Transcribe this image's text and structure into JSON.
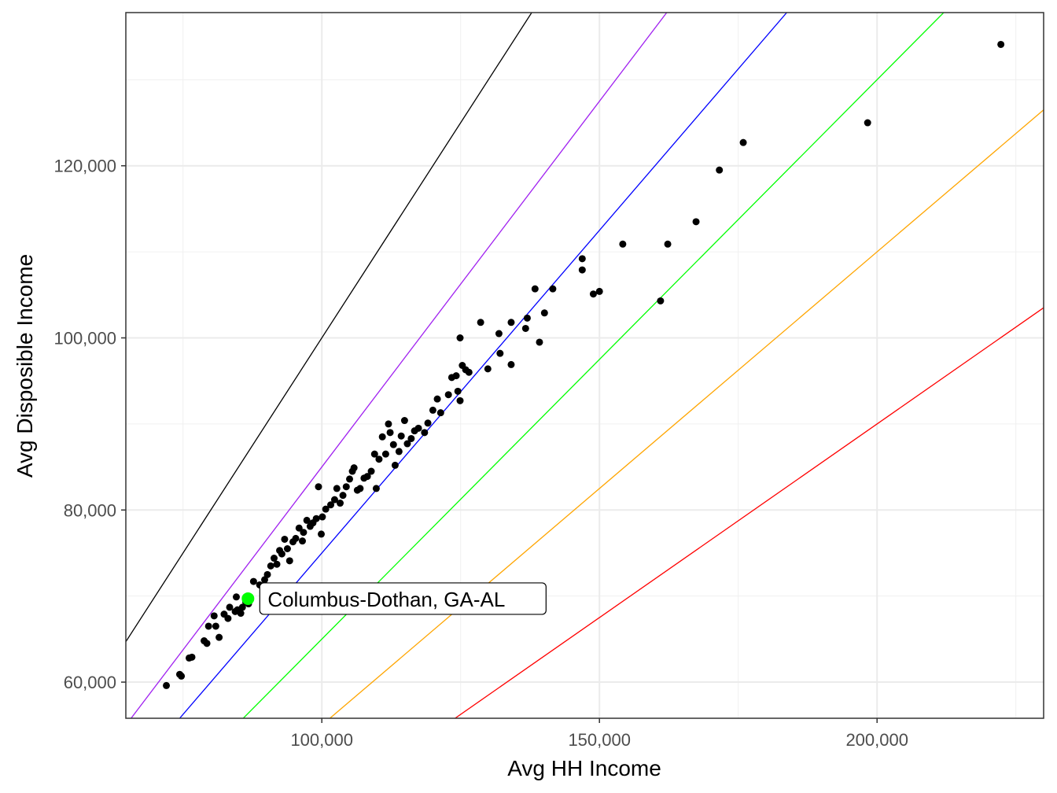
{
  "chart_data": {
    "type": "scatter",
    "xlabel": "Avg HH Income",
    "ylabel": "Avg Disposible Income",
    "xlim": [
      64700,
      230000
    ],
    "ylim": [
      55800,
      137800
    ],
    "x_ticks": [
      100000,
      150000,
      200000
    ],
    "x_tick_labels": [
      "100,000",
      "150,000",
      "200,000"
    ],
    "y_ticks": [
      60000,
      80000,
      100000,
      120000
    ],
    "y_tick_labels": [
      "60,000",
      "80,000",
      "100,000",
      "120,000"
    ],
    "x_minor": [
      75000,
      125000,
      175000,
      225000
    ],
    "y_minor": [
      70000,
      90000,
      110000,
      130000
    ],
    "grid": true,
    "reference_lines": [
      {
        "slope": 1.0,
        "color": "#000000"
      },
      {
        "slope": 0.85,
        "color": "#A020F0"
      },
      {
        "slope": 0.75,
        "color": "#0000FF"
      },
      {
        "slope": 0.65,
        "color": "#00FF00"
      },
      {
        "slope": 0.55,
        "color": "#FFA500"
      },
      {
        "slope": 0.45,
        "color": "#FF0000"
      }
    ],
    "points": [
      [
        72000,
        59600
      ],
      [
        74400,
        60900
      ],
      [
        74700,
        60700
      ],
      [
        76100,
        62800
      ],
      [
        76600,
        62900
      ],
      [
        78800,
        64800
      ],
      [
        79300,
        64500
      ],
      [
        79600,
        66500
      ],
      [
        80600,
        67700
      ],
      [
        80900,
        66500
      ],
      [
        81500,
        65200
      ],
      [
        82400,
        67900
      ],
      [
        83100,
        67400
      ],
      [
        83400,
        68700
      ],
      [
        84400,
        68200
      ],
      [
        84600,
        69900
      ],
      [
        84800,
        68400
      ],
      [
        85400,
        68000
      ],
      [
        85700,
        68700
      ],
      [
        86300,
        69300
      ],
      [
        86800,
        69100
      ],
      [
        87700,
        71700
      ],
      [
        88800,
        71300
      ],
      [
        89700,
        71900
      ],
      [
        90200,
        72500
      ],
      [
        90800,
        73500
      ],
      [
        91400,
        74400
      ],
      [
        91900,
        73700
      ],
      [
        92400,
        75300
      ],
      [
        92800,
        74900
      ],
      [
        93300,
        76600
      ],
      [
        93800,
        75500
      ],
      [
        94200,
        74100
      ],
      [
        94800,
        76300
      ],
      [
        95300,
        76700
      ],
      [
        95900,
        77900
      ],
      [
        96500,
        76400
      ],
      [
        96700,
        77400
      ],
      [
        97300,
        78800
      ],
      [
        97900,
        78100
      ],
      [
        98400,
        78500
      ],
      [
        99000,
        79000
      ],
      [
        99400,
        82700
      ],
      [
        99900,
        77200
      ],
      [
        100100,
        79200
      ],
      [
        100700,
        80100
      ],
      [
        101600,
        80600
      ],
      [
        102300,
        81200
      ],
      [
        102700,
        82500
      ],
      [
        103300,
        80800
      ],
      [
        103800,
        81700
      ],
      [
        104400,
        82700
      ],
      [
        105000,
        83600
      ],
      [
        105500,
        84500
      ],
      [
        105800,
        84900
      ],
      [
        106400,
        82300
      ],
      [
        106900,
        82500
      ],
      [
        107600,
        83700
      ],
      [
        108200,
        83900
      ],
      [
        108900,
        84500
      ],
      [
        109500,
        86500
      ],
      [
        109800,
        82500
      ],
      [
        110300,
        85900
      ],
      [
        110900,
        88500
      ],
      [
        111500,
        86500
      ],
      [
        112000,
        90000
      ],
      [
        112300,
        89000
      ],
      [
        112900,
        87600
      ],
      [
        113200,
        85200
      ],
      [
        113900,
        86800
      ],
      [
        114300,
        88600
      ],
      [
        114900,
        90400
      ],
      [
        115400,
        87700
      ],
      [
        116100,
        88300
      ],
      [
        116700,
        89200
      ],
      [
        117400,
        89500
      ],
      [
        118500,
        89000
      ],
      [
        119100,
        90100
      ],
      [
        120000,
        91600
      ],
      [
        120800,
        92900
      ],
      [
        121400,
        91300
      ],
      [
        122800,
        93400
      ],
      [
        123400,
        95400
      ],
      [
        124200,
        95600
      ],
      [
        124500,
        93800
      ],
      [
        124900,
        92700
      ],
      [
        124900,
        100000
      ],
      [
        125300,
        96800
      ],
      [
        125900,
        96300
      ],
      [
        126500,
        96000
      ],
      [
        128600,
        101800
      ],
      [
        129900,
        96400
      ],
      [
        131900,
        100500
      ],
      [
        132100,
        98200
      ],
      [
        134100,
        101800
      ],
      [
        134100,
        96900
      ],
      [
        136700,
        101100
      ],
      [
        137000,
        102300
      ],
      [
        138400,
        105700
      ],
      [
        139200,
        99500
      ],
      [
        140100,
        102900
      ],
      [
        141600,
        105700
      ],
      [
        146900,
        107900
      ],
      [
        146900,
        109200
      ],
      [
        148900,
        105100
      ],
      [
        150000,
        105400
      ],
      [
        154200,
        110900
      ],
      [
        161000,
        104300
      ],
      [
        162300,
        110900
      ],
      [
        167400,
        113500
      ],
      [
        171600,
        119500
      ],
      [
        175900,
        122700
      ],
      [
        198300,
        125000
      ],
      [
        222300,
        134100
      ]
    ],
    "highlight": {
      "x": 86700,
      "y": 69700,
      "color": "#00FF00",
      "label": "Columbus-Dothan,  GA-AL"
    }
  }
}
